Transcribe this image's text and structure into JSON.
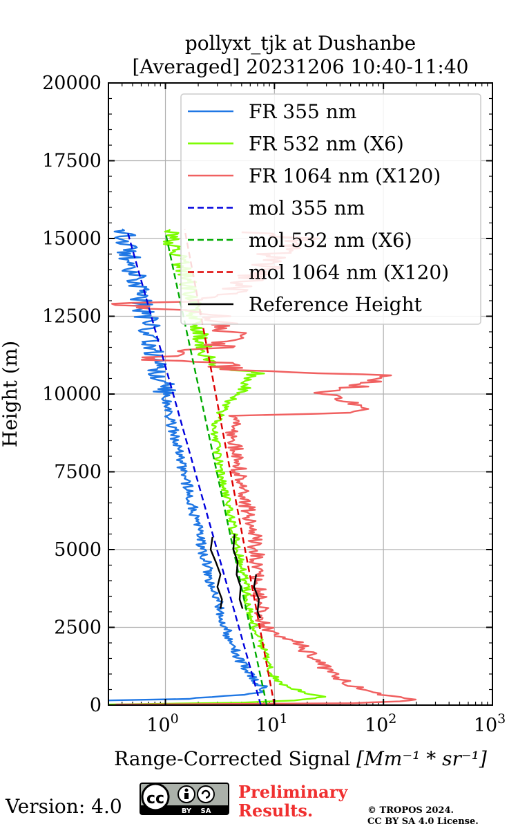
{
  "chart_data": {
    "type": "line",
    "title_line1": "pollyxt_tjk at Dushanbe",
    "title_line2": "[Averaged] 20231206 10:40-11:40",
    "ylabel": "Height (m)",
    "xlabel_text": "Range-Corrected Signal ",
    "xlabel_unit": "[Mm⁻¹ * sr⁻¹]",
    "xscale": "log",
    "xlim": [
      0.3,
      1000
    ],
    "ylim": [
      0,
      20000
    ],
    "grid": true,
    "legend_position": "top-right",
    "x_ticks": [
      {
        "value": 1,
        "label": "10",
        "exp": "0"
      },
      {
        "value": 10,
        "label": "10",
        "exp": "1"
      },
      {
        "value": 100,
        "label": "10",
        "exp": "2"
      },
      {
        "value": 1000,
        "label": "10",
        "exp": "3"
      }
    ],
    "y_ticks": [
      0,
      2500,
      5000,
      7500,
      10000,
      12500,
      15000,
      17500,
      20000
    ],
    "y_tick_labels": [
      "0",
      "2500",
      "5000",
      "7500",
      "10000",
      "12500",
      "15000",
      "17500",
      "20000"
    ],
    "series": [
      {
        "name": "FR 355 nm",
        "color": "#1f77e4",
        "dash": "solid",
        "noise": 0.1,
        "points": [
          [
            0.3,
            150
          ],
          [
            1.5,
            200
          ],
          [
            3,
            260
          ],
          [
            5,
            330
          ],
          [
            7.5,
            430
          ],
          [
            8,
            540
          ],
          [
            7.5,
            640
          ],
          [
            6.5,
            820
          ],
          [
            5.5,
            1100
          ],
          [
            4.5,
            1600
          ],
          [
            3.8,
            2200
          ],
          [
            3.2,
            3000
          ],
          [
            2.6,
            4000
          ],
          [
            2.2,
            5000
          ],
          [
            1.9,
            6000
          ],
          [
            1.6,
            7000
          ],
          [
            1.35,
            8000
          ],
          [
            1.15,
            9000
          ],
          [
            1.0,
            10000
          ],
          [
            0.85,
            11000
          ],
          [
            0.72,
            12000
          ],
          [
            0.6,
            13000
          ],
          [
            0.5,
            14000
          ],
          [
            0.4,
            15300
          ]
        ]
      },
      {
        "name": "FR 532 nm (X6)",
        "color": "#7cfc00",
        "dash": "solid",
        "noise": 0.08,
        "points": [
          [
            0.3,
            20
          ],
          [
            5,
            80
          ],
          [
            15,
            150
          ],
          [
            25,
            220
          ],
          [
            28,
            270
          ],
          [
            20,
            380
          ],
          [
            15,
            520
          ],
          [
            11,
            750
          ],
          [
            9,
            1100
          ],
          [
            8,
            1700
          ],
          [
            7,
            2300
          ],
          [
            6,
            3000
          ],
          [
            5.3,
            4000
          ],
          [
            4.6,
            5000
          ],
          [
            4,
            6000
          ],
          [
            3.4,
            7000
          ],
          [
            3,
            8000
          ],
          [
            2.8,
            9000
          ],
          [
            3.5,
            9600
          ],
          [
            4.5,
            10000
          ],
          [
            7,
            10700
          ],
          [
            3.5,
            10800
          ],
          [
            2.3,
            11300
          ],
          [
            2,
            12000
          ],
          [
            1.8,
            13000
          ],
          [
            1.5,
            14000
          ],
          [
            1.2,
            14700
          ],
          [
            1.1,
            15300
          ]
        ]
      },
      {
        "name": "FR 1064 nm (X120)",
        "color": "#f06060",
        "dash": "solid",
        "noise": 0.15,
        "points": [
          [
            0.3,
            20
          ],
          [
            50,
            60
          ],
          [
            150,
            120
          ],
          [
            180,
            180
          ],
          [
            120,
            300
          ],
          [
            70,
            450
          ],
          [
            45,
            700
          ],
          [
            35,
            1000
          ],
          [
            25,
            1400
          ],
          [
            20,
            1700
          ],
          [
            15,
            2100
          ],
          [
            10,
            2300
          ],
          [
            8,
            2600
          ],
          [
            7.5,
            3000
          ],
          [
            7,
            4000
          ],
          [
            6.8,
            5000
          ],
          [
            6,
            6000
          ],
          [
            5,
            7000
          ],
          [
            4.5,
            8000
          ],
          [
            4.2,
            9000
          ],
          [
            4,
            9300
          ],
          [
            50,
            9400
          ],
          [
            70,
            9600
          ],
          [
            40,
            9800
          ],
          [
            30,
            10000
          ],
          [
            50,
            10200
          ],
          [
            100,
            10600
          ],
          [
            10,
            10700
          ],
          [
            4,
            10800
          ],
          [
            3,
            11000
          ],
          [
            0.6,
            11100
          ],
          [
            3,
            11500
          ],
          [
            4,
            12000
          ],
          [
            3,
            12500
          ],
          [
            0.4,
            12900
          ],
          [
            2.5,
            13000
          ],
          [
            5,
            13500
          ],
          [
            8,
            14000
          ],
          [
            10,
            14500
          ],
          [
            20,
            15000
          ],
          [
            5,
            15200
          ]
        ]
      },
      {
        "name": "mol 355 nm",
        "color": "#0000dd",
        "dash": "dashed",
        "noise": 0,
        "points": [
          [
            7.5,
            0
          ],
          [
            0.45,
            15200
          ]
        ]
      },
      {
        "name": "mol 532 nm (X6)",
        "color": "#00aa00",
        "dash": "dashed",
        "noise": 0,
        "points": [
          [
            8.5,
            0
          ],
          [
            1.0,
            15200
          ]
        ]
      },
      {
        "name": "mol 1064 nm (X120)",
        "color": "#dd0000",
        "dash": "dashed",
        "noise": 0,
        "points": [
          [
            10,
            0
          ],
          [
            1.5,
            15300
          ]
        ]
      },
      {
        "name": "Reference Height",
        "color": "#000000",
        "dash": "solid",
        "noise": 0,
        "segments": [
          [
            [
              2.7,
              5400
            ],
            [
              2.6,
              5000
            ],
            [
              2.9,
              4600
            ],
            [
              3.2,
              4200
            ],
            [
              3.0,
              3800
            ],
            [
              3.3,
              3400
            ],
            [
              3.2,
              3100
            ]
          ],
          [
            [
              4.3,
              5500
            ],
            [
              4.2,
              5000
            ],
            [
              4.6,
              4600
            ],
            [
              4.5,
              4200
            ],
            [
              4.9,
              3800
            ],
            [
              4.8,
              3400
            ],
            [
              5.1,
              3100
            ]
          ],
          [
            [
              6.8,
              4200
            ],
            [
              6.5,
              3800
            ],
            [
              7.2,
              3400
            ],
            [
              7.0,
              3000
            ],
            [
              7.4,
              2800
            ]
          ]
        ]
      }
    ]
  },
  "footer": {
    "version": "Version: 4.0",
    "license_badge_text": "CC BY SA",
    "license_badge_by": "BY",
    "license_badge_sa": "SA",
    "license_badge_cc": "cc",
    "preliminary_line1": "Preliminary",
    "preliminary_line2": "Results.",
    "copyright_line1": "© TROPOS 2024.",
    "copyright_line2": "CC BY SA 4.0 License."
  }
}
